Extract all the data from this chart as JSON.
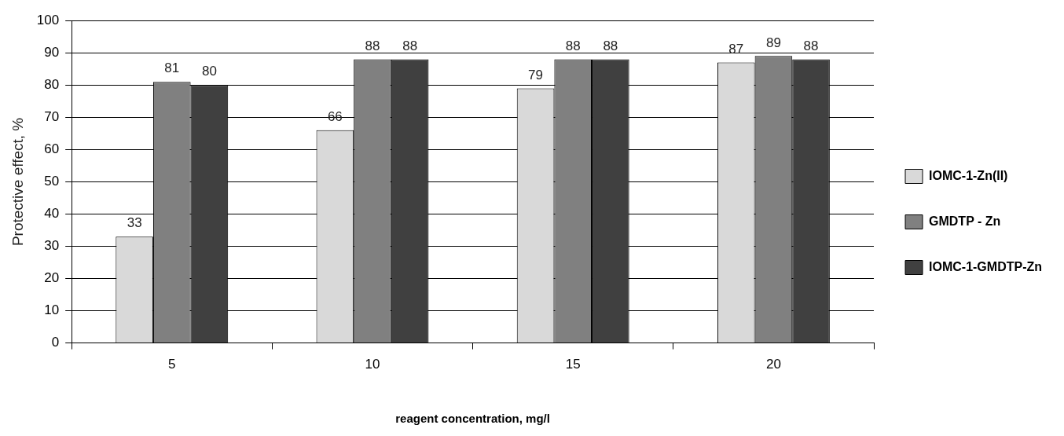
{
  "chart_data": {
    "type": "bar",
    "xlabel": "reagent concentration, mg/l",
    "ylabel": "Protective effect, %",
    "categories": [
      "5",
      "10",
      "15",
      "20"
    ],
    "series": [
      {
        "name": "IOMC-1-Zn(II)",
        "color": "#d9d9d9",
        "values": [
          33,
          66,
          79,
          87
        ]
      },
      {
        "name": "GMDTP - Zn",
        "color": "#808080",
        "values": [
          81,
          88,
          88,
          89
        ]
      },
      {
        "name": "IOMC-1-GMDTP-Zn",
        "color": "#404040",
        "values": [
          80,
          88,
          88,
          88
        ]
      }
    ],
    "ylim": [
      0,
      100
    ],
    "yticks": [
      0,
      10,
      20,
      30,
      40,
      50,
      60,
      70,
      80,
      90,
      100
    ],
    "grid": "y",
    "legend": "right",
    "data_labels": true
  }
}
